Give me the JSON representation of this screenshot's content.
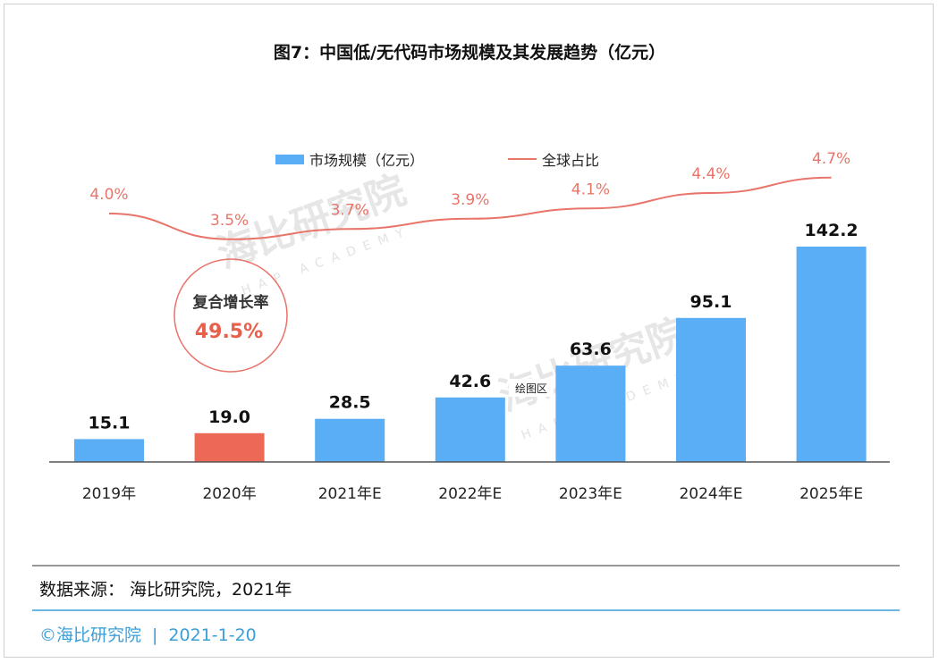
{
  "title": "图7：中国低/无代码市场规模及其发展趋势（亿元）",
  "legend": {
    "bar_label": "市场规模（亿元）",
    "line_label": "全球占比"
  },
  "cagr": {
    "label": "复合增长率",
    "value": "49.5%"
  },
  "plot_area_label": "绘图区",
  "watermark": {
    "name": "海比研究院",
    "sub": "HAP ACADEMY"
  },
  "source": "数据来源： 海比研究院，2021年",
  "footer": {
    "brand": "©海比研究院",
    "separator": "|",
    "date": "2021-1-20"
  },
  "colors": {
    "bar": "#5aaef5",
    "highlight_bar": "#ec6a55",
    "line": "#e8746a",
    "axis": "#555555",
    "title": "#111111",
    "footer": "#3a9fd8"
  },
  "chart_data": {
    "type": "bar+line",
    "categories": [
      "2019年",
      "2020年",
      "2021年E",
      "2022年E",
      "2023年E",
      "2024年E",
      "2025年E"
    ],
    "series": [
      {
        "name": "市场规模（亿元）",
        "type": "bar",
        "values": [
          15.1,
          19.0,
          28.5,
          42.6,
          63.6,
          95.1,
          142.2
        ],
        "labels": [
          "15.1",
          "19.0",
          "28.5",
          "42.6",
          "63.6",
          "95.1",
          "142.2"
        ],
        "highlight_index": 1
      },
      {
        "name": "全球占比",
        "type": "line",
        "values": [
          4.0,
          3.5,
          3.7,
          3.9,
          4.1,
          4.4,
          4.7
        ],
        "labels": [
          "4.0%",
          "3.5%",
          "3.7%",
          "3.9%",
          "4.1%",
          "4.4%",
          "4.7%"
        ]
      }
    ],
    "legend_position": "top",
    "grid": false
  }
}
